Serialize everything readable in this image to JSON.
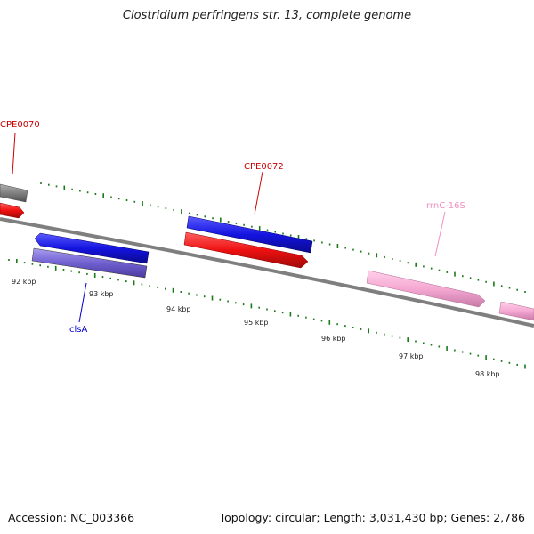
{
  "title": "Clostridium perfringens str. 13, complete genome",
  "footer": {
    "accession": "Accession: NC_003366",
    "stats": "Topology: circular; Length: 3,031,430 bp; Genes: 2,786"
  },
  "colors": {
    "backbone": "#7f7f7f",
    "tick": "#1a7a1a",
    "forward_cds": "#1414e0",
    "reverse_cds": "#ee1111",
    "gray_feature": "#808080",
    "cls_gene": "#7060d0",
    "rrna": "#f5a8d2"
  },
  "axis": {
    "tick_labels": [
      "92 kbp",
      "93 kbp",
      "94 kbp",
      "95 kbp",
      "96 kbp",
      "97 kbp",
      "98 kbp"
    ]
  },
  "labels": {
    "cpe0070": "CPE0070",
    "cpe0072": "CPE0072",
    "rrnc": "rrnC-16S",
    "clsa": "clsA"
  }
}
